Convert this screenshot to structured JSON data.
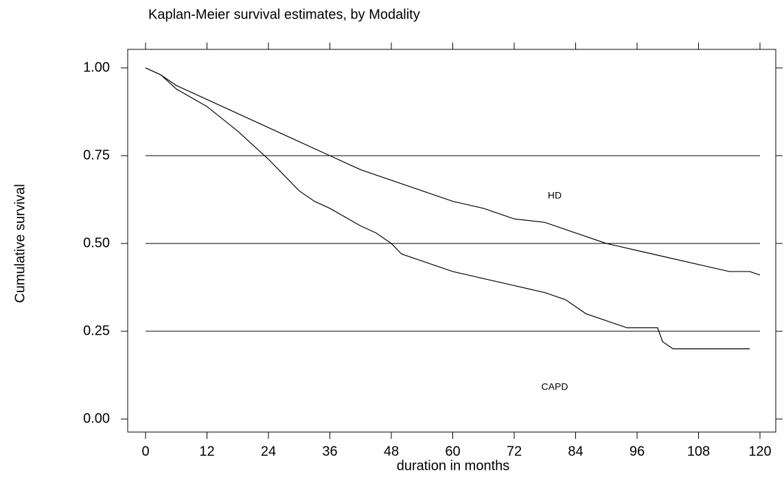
{
  "chart_data": {
    "type": "line",
    "title": "Kaplan-Meier survival estimates, by Modality",
    "x_label": "duration in months",
    "y_label": "Cumulative survival",
    "annotations": [
      "HD",
      "CAPD"
    ],
    "xlim": [
      0,
      120
    ],
    "xticks": [
      0,
      12,
      24,
      36,
      48,
      60,
      72,
      84,
      96,
      108,
      120
    ],
    "ylim": [
      0,
      1
    ],
    "yticks": [
      {
        "value": 0,
        "label": "0.00"
      },
      {
        "value": 0.25,
        "label": "0.25"
      },
      {
        "value": 0.5,
        "label": "0.50"
      },
      {
        "value": 0.75,
        "label": "0.75"
      },
      {
        "value": 1,
        "label": "1.00"
      }
    ],
    "grid": true,
    "series": [
      {
        "name": "HD",
        "color": "#000000",
        "x": [
          0,
          3,
          6,
          12,
          18,
          24,
          30,
          36,
          42,
          48,
          54,
          60,
          66,
          72,
          78,
          84,
          90,
          96,
          102,
          108,
          114,
          118,
          120
        ],
        "values": [
          1.0,
          0.98,
          0.95,
          0.91,
          0.87,
          0.83,
          0.79,
          0.75,
          0.71,
          0.68,
          0.65,
          0.62,
          0.6,
          0.57,
          0.56,
          0.53,
          0.5,
          0.48,
          0.46,
          0.44,
          0.42,
          0.42,
          0.41
        ]
      },
      {
        "name": "CAPD",
        "color": "#000000",
        "x": [
          0,
          3,
          6,
          12,
          18,
          24,
          30,
          33,
          36,
          42,
          45,
          48,
          50,
          54,
          60,
          66,
          72,
          78,
          82,
          86,
          90,
          94,
          100,
          101,
          103,
          118
        ],
        "values": [
          1.0,
          0.98,
          0.94,
          0.89,
          0.82,
          0.74,
          0.65,
          0.62,
          0.6,
          0.55,
          0.53,
          0.5,
          0.47,
          0.45,
          0.42,
          0.4,
          0.38,
          0.36,
          0.34,
          0.3,
          0.28,
          0.26,
          0.26,
          0.22,
          0.2,
          0.2
        ]
      }
    ]
  }
}
